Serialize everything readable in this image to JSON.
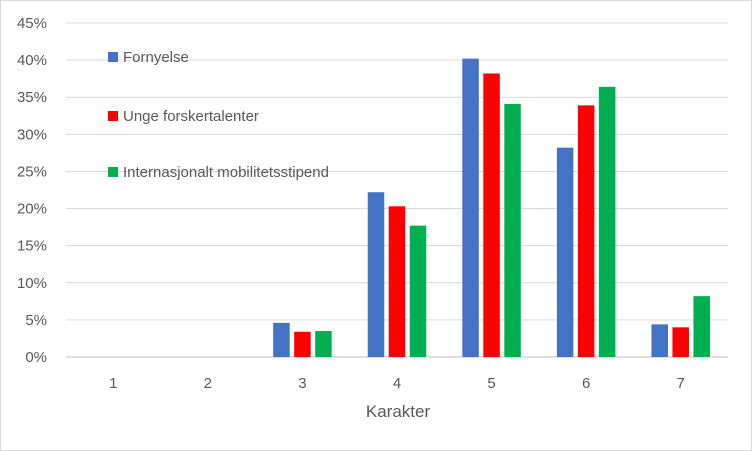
{
  "chart_data": {
    "type": "bar",
    "title": "",
    "xlabel": "Karakter",
    "ylabel": "",
    "categories": [
      "1",
      "2",
      "3",
      "4",
      "5",
      "6",
      "7"
    ],
    "yticks": [
      "0%",
      "5%",
      "10%",
      "15%",
      "20%",
      "25%",
      "30%",
      "35%",
      "40%",
      "45%"
    ],
    "ylim": [
      0,
      45
    ],
    "grid": true,
    "legend_position": "top-left",
    "series": [
      {
        "name": "Fornyelse",
        "color": "#4472c4",
        "values": [
          0,
          0,
          4.6,
          22.2,
          40.2,
          28.2,
          4.4
        ]
      },
      {
        "name": "Unge forskertalenter",
        "color": "#ff0000",
        "values": [
          0,
          0,
          3.4,
          20.3,
          38.2,
          33.9,
          4.0
        ]
      },
      {
        "name": "Internasjonalt mobilitetsstipend",
        "color": "#00b050",
        "values": [
          0,
          0,
          3.5,
          17.7,
          34.1,
          36.4,
          8.2
        ]
      }
    ]
  }
}
